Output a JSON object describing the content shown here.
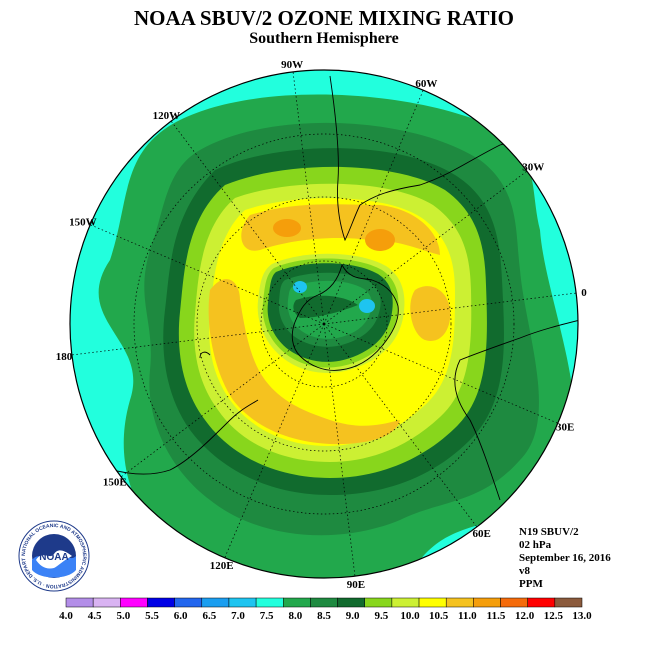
{
  "title": "NOAA SBUV/2 OZONE MIXING RATIO",
  "subtitle": "Southern Hemisphere",
  "info": {
    "satellite": "N19 SBUV/2",
    "pressure": "02 hPa",
    "date": "September 16, 2016",
    "version": "v8",
    "units": "PPM"
  },
  "logo": {
    "text": "NOAA",
    "ring_text": "NATIONAL OCEANIC AND ATMOSPHERIC ADMINISTRATION · U.S. DEPARTMENT OF COMMERCE"
  },
  "longitudes": [
    "90W",
    "60W",
    "30W",
    "0",
    "30E",
    "60E",
    "90E",
    "120E",
    "150E",
    "180",
    "150W",
    "120W"
  ],
  "colorbar": {
    "labels": [
      "4.0",
      "4.5",
      "5.0",
      "5.5",
      "6.0",
      "6.5",
      "7.0",
      "7.5",
      "8.0",
      "8.5",
      "9.0",
      "9.5",
      "10.0",
      "10.5",
      "11.0",
      "11.5",
      "12.0",
      "12.5",
      "13.0"
    ],
    "colors": [
      "#b38ee8",
      "#d9b3f2",
      "#ff00ff",
      "#0000e6",
      "#2266ee",
      "#1a9ef0",
      "#1ec4f0",
      "#22ffdd",
      "#22a84c",
      "#1e8a40",
      "#116b2e",
      "#88d61c",
      "#ccf033",
      "#ffff00",
      "#f5c21f",
      "#f59e0b",
      "#f56b0b",
      "#ff0000",
      "#8b5a3c"
    ]
  },
  "ozone_bands": {
    "color_outer": "#22ffdd",
    "color_8_0": "#22a84c",
    "color_8_5": "#1e8a40",
    "color_9_0": "#116b2e",
    "color_9_5": "#88d61c",
    "color_10_0": "#ccf033",
    "color_10_5": "#ffff00",
    "color_11_0": "#f5c21f",
    "color_11_5": "#f59e0b",
    "color_inner_min": "#1ec4f0"
  }
}
